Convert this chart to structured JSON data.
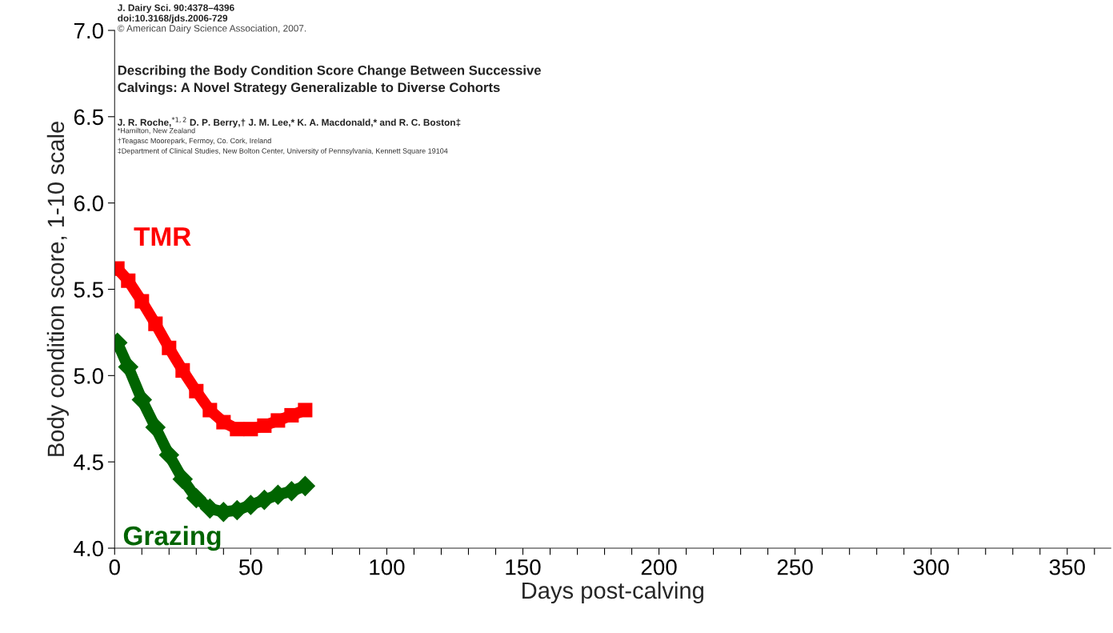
{
  "chart_data": {
    "type": "line",
    "xlabel": "Days post-calving",
    "ylabel": "Body condition score, 1-10 scale",
    "annotations": [
      "J. Dairy Sci. 90:4378–4396",
      "doi:10.3168/jds.2006-729",
      "© American Dairy Science Association, 2007.",
      "Describing the Body Condition Score Change Between Successive",
      "Calvings: A Novel Strategy Generalizable to Diverse Cohorts",
      "J. R. Roche,$^{*1,2}$ D. P. Berry,† J. M. Lee,* K. A. Macdonald,* and R. C. Boston‡",
      "*Hamilton, New Zealand",
      "†Teagasc Moorepark, Fermoy, Co. Cork, Ireland",
      "‡Department of Clinical Studies, New Bolton Center, University of Pennsylvania, Kennett Square 19104"
    ],
    "x": [
      1,
      5,
      10,
      15,
      20,
      25,
      30,
      35,
      40,
      45,
      50,
      55,
      60,
      65,
      70
    ],
    "series": [
      {
        "name": "TMR",
        "color": "#ff0000",
        "marker": "square",
        "values": [
          5.62,
          5.55,
          5.43,
          5.3,
          5.16,
          5.03,
          4.91,
          4.8,
          4.73,
          4.69,
          4.69,
          4.71,
          4.74,
          4.77,
          4.8
        ]
      },
      {
        "name": "Grazing",
        "color": "#006400",
        "marker": "diamond",
        "values": [
          5.19,
          5.05,
          4.86,
          4.7,
          4.54,
          4.4,
          4.29,
          4.23,
          4.21,
          4.22,
          4.25,
          4.28,
          4.31,
          4.33,
          4.36
        ]
      }
    ],
    "xlim": [
      0,
      366
    ],
    "ylim": [
      4,
      7
    ],
    "xticks": [
      0,
      {
        "value": 10,
        "label": null
      },
      {
        "value": 20,
        "label": null
      },
      {
        "value": 30,
        "label": null
      },
      {
        "value": 40,
        "label": null
      },
      50,
      {
        "value": 60,
        "label": null
      },
      {
        "value": 70,
        "label": null
      },
      {
        "value": 80,
        "label": null
      },
      {
        "value": 90,
        "label": null
      },
      100,
      {
        "value": 110,
        "label": null
      },
      {
        "value": 120,
        "label": null
      },
      {
        "value": 130,
        "label": null
      },
      {
        "value": 140,
        "label": null
      },
      150,
      {
        "value": 160,
        "label": null
      },
      {
        "value": 170,
        "label": null
      },
      {
        "value": 180,
        "label": null
      },
      {
        "value": 190,
        "label": null
      },
      200,
      {
        "value": 210,
        "label": null
      },
      {
        "value": 220,
        "label": null
      },
      {
        "value": 230,
        "label": null
      },
      {
        "value": 240,
        "label": null
      },
      250,
      {
        "value": 260,
        "label": null
      },
      {
        "value": 270,
        "label": null
      },
      {
        "value": 280,
        "label": null
      },
      {
        "value": 290,
        "label": null
      },
      300,
      {
        "value": 310,
        "label": null
      },
      {
        "value": 320,
        "label": null
      },
      {
        "value": 330,
        "label": null
      },
      {
        "value": 340,
        "label": null
      },
      350,
      {
        "value": 360,
        "label": null
      }
    ],
    "yticks": [
      {
        "value": 4,
        "label": "4.0"
      },
      {
        "value": 4.5,
        "label": "4.5"
      },
      {
        "value": 5,
        "label": "5.0"
      },
      {
        "value": 5.5,
        "label": "5.5"
      },
      {
        "value": 6,
        "label": "6.0"
      },
      {
        "value": 6.5,
        "label": "6.5"
      },
      {
        "value": 7,
        "label": "7.0"
      }
    ],
    "grid": false,
    "legend": false
  }
}
